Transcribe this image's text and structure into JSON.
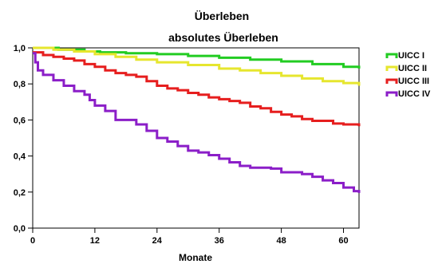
{
  "chart_data": {
    "type": "line",
    "step": true,
    "title": "Überleben",
    "subtitle": "absolutes Überleben",
    "xlabel": "Monate",
    "ylabel": "",
    "xlim": [
      0,
      63
    ],
    "ylim": [
      0,
      1
    ],
    "x_ticks": [
      0,
      12,
      24,
      36,
      48,
      60
    ],
    "y_ticks": [
      0.0,
      0.2,
      0.4,
      0.6,
      0.8,
      1.0
    ],
    "x_tick_labels": [
      "0",
      "12",
      "24",
      "36",
      "48",
      "60"
    ],
    "y_tick_labels": [
      "0,0",
      "0,2",
      "0,4",
      "0,6",
      "0,8",
      "1,0"
    ],
    "grid": false,
    "legend_position": "right",
    "series": [
      {
        "name": "UICC I",
        "color": "#22cc22",
        "points": [
          [
            0,
            1.0
          ],
          [
            5,
            0.99
          ],
          [
            10,
            0.98
          ],
          [
            13,
            0.975
          ],
          [
            18,
            0.97
          ],
          [
            24,
            0.965
          ],
          [
            30,
            0.955
          ],
          [
            36,
            0.945
          ],
          [
            42,
            0.935
          ],
          [
            48,
            0.925
          ],
          [
            54,
            0.91
          ],
          [
            60,
            0.895
          ],
          [
            63,
            0.885
          ]
        ]
      },
      {
        "name": "UICC II",
        "color": "#e6e62e",
        "points": [
          [
            0,
            1.0
          ],
          [
            4,
            0.99
          ],
          [
            8,
            0.98
          ],
          [
            12,
            0.965
          ],
          [
            16,
            0.95
          ],
          [
            20,
            0.935
          ],
          [
            24,
            0.92
          ],
          [
            30,
            0.905
          ],
          [
            36,
            0.885
          ],
          [
            40,
            0.875
          ],
          [
            44,
            0.86
          ],
          [
            48,
            0.845
          ],
          [
            52,
            0.83
          ],
          [
            56,
            0.815
          ],
          [
            60,
            0.805
          ],
          [
            63,
            0.79
          ]
        ]
      },
      {
        "name": "UICC III",
        "color": "#e61e1e",
        "points": [
          [
            0,
            0.975
          ],
          [
            2,
            0.96
          ],
          [
            4,
            0.95
          ],
          [
            6,
            0.94
          ],
          [
            8,
            0.93
          ],
          [
            10,
            0.91
          ],
          [
            12,
            0.895
          ],
          [
            14,
            0.875
          ],
          [
            16,
            0.86
          ],
          [
            18,
            0.85
          ],
          [
            20,
            0.84
          ],
          [
            22,
            0.815
          ],
          [
            24,
            0.79
          ],
          [
            26,
            0.775
          ],
          [
            28,
            0.765
          ],
          [
            30,
            0.75
          ],
          [
            32,
            0.74
          ],
          [
            34,
            0.725
          ],
          [
            36,
            0.715
          ],
          [
            38,
            0.705
          ],
          [
            40,
            0.695
          ],
          [
            42,
            0.675
          ],
          [
            44,
            0.665
          ],
          [
            46,
            0.645
          ],
          [
            48,
            0.63
          ],
          [
            50,
            0.62
          ],
          [
            52,
            0.605
          ],
          [
            54,
            0.595
          ],
          [
            58,
            0.58
          ],
          [
            60,
            0.575
          ],
          [
            63,
            0.565
          ]
        ]
      },
      {
        "name": "UICC IV",
        "color": "#8b1ec8",
        "points": [
          [
            0,
            0.97
          ],
          [
            0.5,
            0.92
          ],
          [
            1,
            0.875
          ],
          [
            2,
            0.85
          ],
          [
            4,
            0.82
          ],
          [
            6,
            0.79
          ],
          [
            8,
            0.76
          ],
          [
            10,
            0.74
          ],
          [
            11,
            0.71
          ],
          [
            12,
            0.68
          ],
          [
            14,
            0.65
          ],
          [
            16,
            0.6
          ],
          [
            20,
            0.575
          ],
          [
            22,
            0.54
          ],
          [
            24,
            0.5
          ],
          [
            26,
            0.48
          ],
          [
            28,
            0.455
          ],
          [
            30,
            0.43
          ],
          [
            32,
            0.42
          ],
          [
            34,
            0.405
          ],
          [
            36,
            0.385
          ],
          [
            38,
            0.365
          ],
          [
            40,
            0.345
          ],
          [
            42,
            0.335
          ],
          [
            46,
            0.33
          ],
          [
            48,
            0.31
          ],
          [
            52,
            0.3
          ],
          [
            54,
            0.285
          ],
          [
            56,
            0.265
          ],
          [
            58,
            0.25
          ],
          [
            60,
            0.225
          ],
          [
            62,
            0.205
          ],
          [
            63,
            0.195
          ]
        ]
      }
    ]
  }
}
